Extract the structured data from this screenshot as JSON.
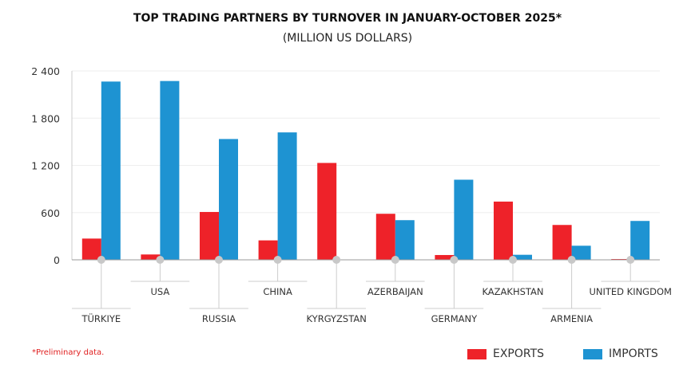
{
  "chart_data": {
    "type": "bar",
    "title": "TOP TRADING PARTNERS BY TURNOVER IN JANUARY-OCTOBER 2025*",
    "subtitle": "(MILLION US DOLLARS)",
    "categories": [
      "TÜRKIYE",
      "USA",
      "RUSSIA",
      "CHINA",
      "KYRGYZSTAN",
      "AZERBAIJAN",
      "GERMANY",
      "KAZAKHSTAN",
      "ARMENIA",
      "UNITED KINGDOM"
    ],
    "series": [
      {
        "name": "EXPORTS",
        "color": "#ee2229",
        "values": [
          270,
          68,
          608,
          247,
          1231,
          585,
          61,
          740,
          443,
          10
        ]
      },
      {
        "name": "IMPORTS",
        "color": "#1e93d2",
        "values": [
          2265,
          2272,
          1535,
          1619,
          5,
          504,
          1018,
          64,
          179,
          494
        ]
      }
    ],
    "ylim": [
      0,
      2400
    ],
    "yticks": [
      0,
      600,
      1200,
      1800,
      2400
    ],
    "ytick_labels": [
      "0",
      "600",
      "1 200",
      "1 800",
      "2 400"
    ],
    "grid": true,
    "legend_placement": "bottom-right",
    "footnote": "*Preliminary data."
  }
}
